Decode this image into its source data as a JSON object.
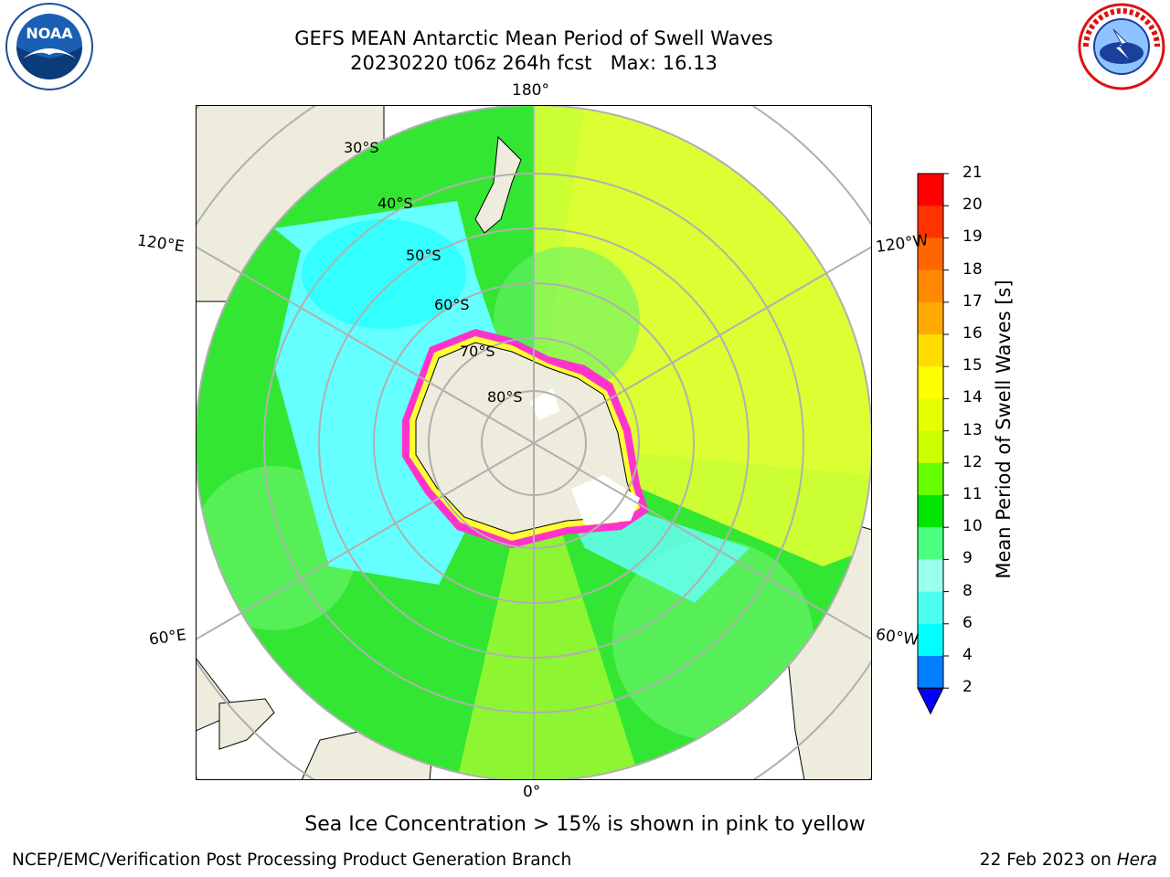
{
  "title_line1": "GEFS MEAN Antarctic Mean Period of Swell Waves",
  "title_line2": "20230220 t06z 264h fcst   Max: 16.13",
  "map": {
    "projection": "south-polar-stereographic",
    "lon_labels": {
      "top": "180°",
      "bottom": "0°",
      "left_upper": "120°E",
      "left_lower": "60°E",
      "right_upper": "120°W",
      "right_lower": "60°W"
    },
    "lat_labels": [
      "30°S",
      "40°S",
      "50°S",
      "60°S",
      "70°S",
      "80°S"
    ],
    "ocean_colors": {
      "wave_green": "#33e633",
      "wave_lightgreen": "#66f266",
      "wave_cyan": "#66ffff",
      "wave_yellow": "#e6ff33",
      "land": "#eeecdc",
      "sea_ice_pink": "#ff33cc",
      "sea_ice_yellow": "#ffff00",
      "grid": "#b0b0b0"
    }
  },
  "colorbar": {
    "label": "Mean Period of Swell Waves [s]",
    "ticks": [
      "21",
      "20",
      "19",
      "18",
      "17",
      "16",
      "15",
      "14",
      "13",
      "12",
      "11",
      "10",
      "9",
      "8",
      "6",
      "4",
      "2"
    ],
    "colors": [
      "#ff0000",
      "#ff3300",
      "#ff6600",
      "#ff8800",
      "#ffaa00",
      "#ffdd00",
      "#ffff00",
      "#e6ff00",
      "#ccff00",
      "#66ff00",
      "#00e600",
      "#4dff80",
      "#99ffee",
      "#4dfff0",
      "#00ffff",
      "#0080ff",
      "#0000ff"
    ],
    "extend": "min"
  },
  "note": "Sea Ice Concentration > 15% is shown in pink to yellow",
  "footer_left": "NCEP/EMC/Verification Post Processing Product Generation Branch",
  "footer_right_prefix": "22 Feb 2023 on ",
  "footer_right_host": "Hera",
  "logos": {
    "left": "noaa-logo",
    "right": "nws-logo"
  }
}
